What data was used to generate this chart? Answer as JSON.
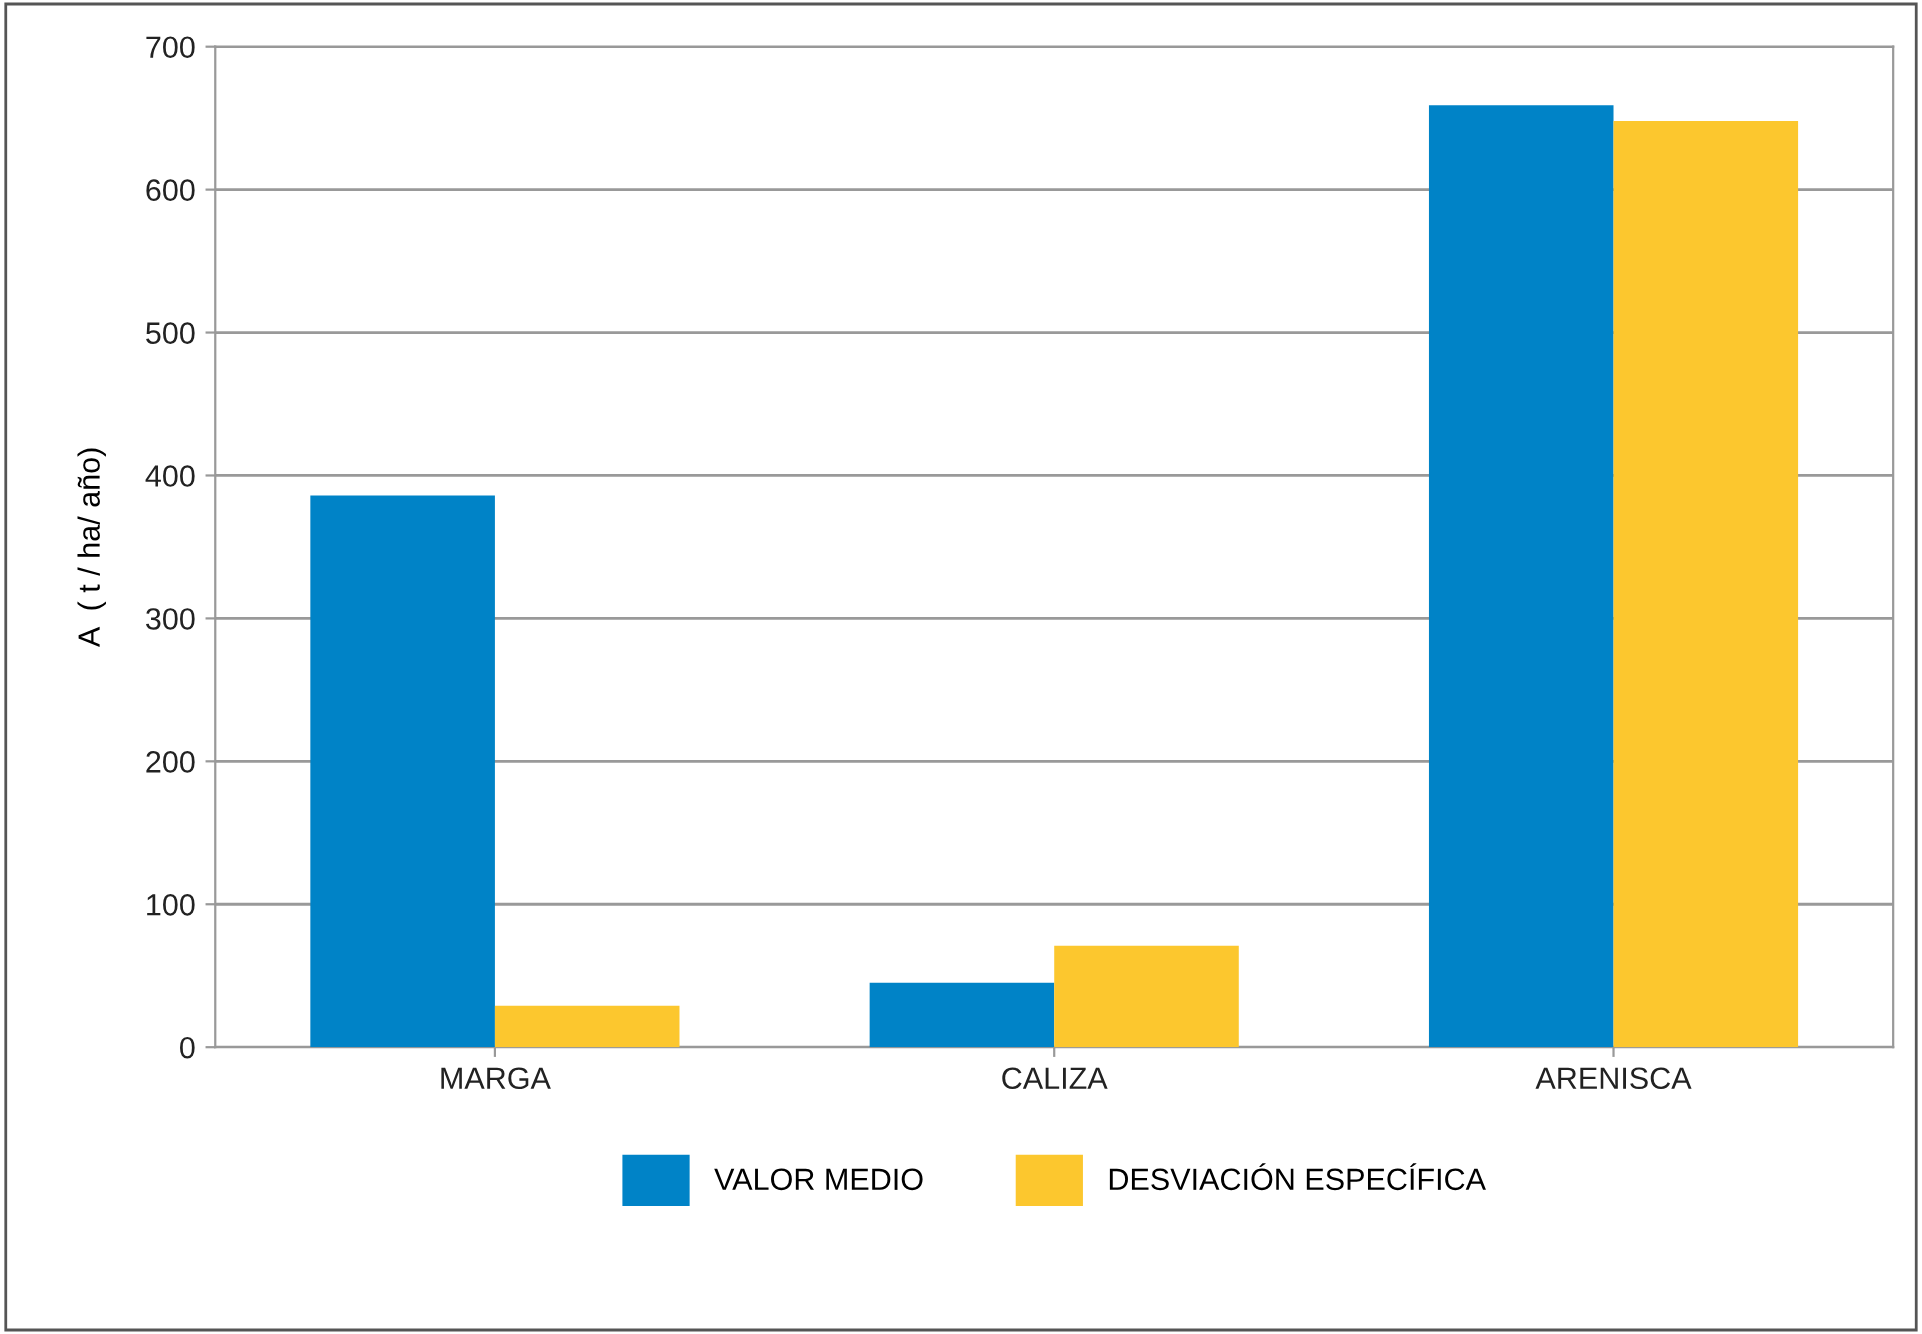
{
  "chart_data": {
    "type": "bar",
    "ylabel": "A  ( t / ha/ año)",
    "categories": [
      "MARGA",
      "CALIZA",
      "ARENISCA"
    ],
    "series": [
      {
        "name": "VALOR MEDIO",
        "color": "#0083c7",
        "values": [
          386,
          45,
          659
        ]
      },
      {
        "name": "DESVIACIÓN ESPECÍFICA",
        "color": "#fcc72e",
        "values": [
          29,
          71,
          648
        ]
      }
    ],
    "ylim": [
      0,
      700
    ],
    "yticks": [
      0,
      100,
      200,
      300,
      400,
      500,
      600,
      700
    ],
    "grid": "y",
    "legend": "bottom"
  }
}
